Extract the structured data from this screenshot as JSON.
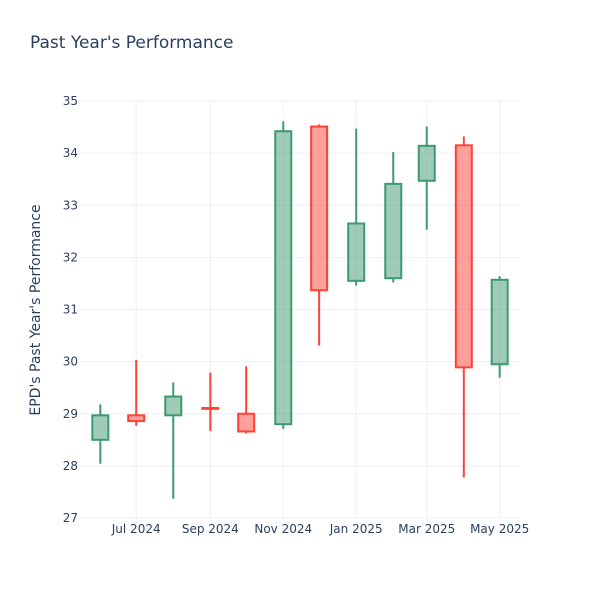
{
  "chart_data": {
    "type": "candlestick",
    "title": "Past Year's Performance",
    "ylabel": "EPD's Past Year's Performance",
    "xlabel": "",
    "ylim": [
      27,
      35
    ],
    "yticks": [
      27,
      28,
      29,
      30,
      31,
      32,
      33,
      34,
      35
    ],
    "xticks": [
      {
        "label": "Jul 2024",
        "date": "2024-07-01"
      },
      {
        "label": "Sep 2024",
        "date": "2024-09-01"
      },
      {
        "label": "Nov 2024",
        "date": "2024-11-01"
      },
      {
        "label": "Jan 2025",
        "date": "2025-01-01"
      },
      {
        "label": "Mar 2025",
        "date": "2025-03-01"
      },
      {
        "label": "May 2025",
        "date": "2025-05-01"
      }
    ],
    "grid": true,
    "colors": {
      "increasing": "#3d9970",
      "decreasing": "#ff4136"
    },
    "candles": [
      {
        "date": "2024-06-01",
        "open": 28.5,
        "high": 29.18,
        "low": 28.04,
        "close": 28.97
      },
      {
        "date": "2024-07-01",
        "open": 28.97,
        "high": 30.03,
        "low": 28.77,
        "close": 28.86
      },
      {
        "date": "2024-08-01",
        "open": 28.97,
        "high": 29.6,
        "low": 27.37,
        "close": 29.33
      },
      {
        "date": "2024-09-01",
        "open": 29.11,
        "high": 29.79,
        "low": 28.67,
        "close": 29.1
      },
      {
        "date": "2024-10-01",
        "open": 29.0,
        "high": 29.91,
        "low": 28.62,
        "close": 28.66
      },
      {
        "date": "2024-11-01",
        "open": 28.8,
        "high": 34.61,
        "low": 28.71,
        "close": 34.42
      },
      {
        "date": "2024-12-01",
        "open": 34.51,
        "high": 34.55,
        "low": 30.31,
        "close": 31.37
      },
      {
        "date": "2025-01-01",
        "open": 31.55,
        "high": 34.47,
        "low": 31.46,
        "close": 32.65
      },
      {
        "date": "2025-02-01",
        "open": 31.6,
        "high": 34.02,
        "low": 31.52,
        "close": 33.41
      },
      {
        "date": "2025-03-01",
        "open": 33.47,
        "high": 34.51,
        "low": 32.53,
        "close": 34.14
      },
      {
        "date": "2025-04-01",
        "open": 34.15,
        "high": 34.32,
        "low": 27.78,
        "close": 29.89
      },
      {
        "date": "2025-05-01",
        "open": 29.95,
        "high": 31.64,
        "low": 29.69,
        "close": 31.57
      }
    ]
  }
}
